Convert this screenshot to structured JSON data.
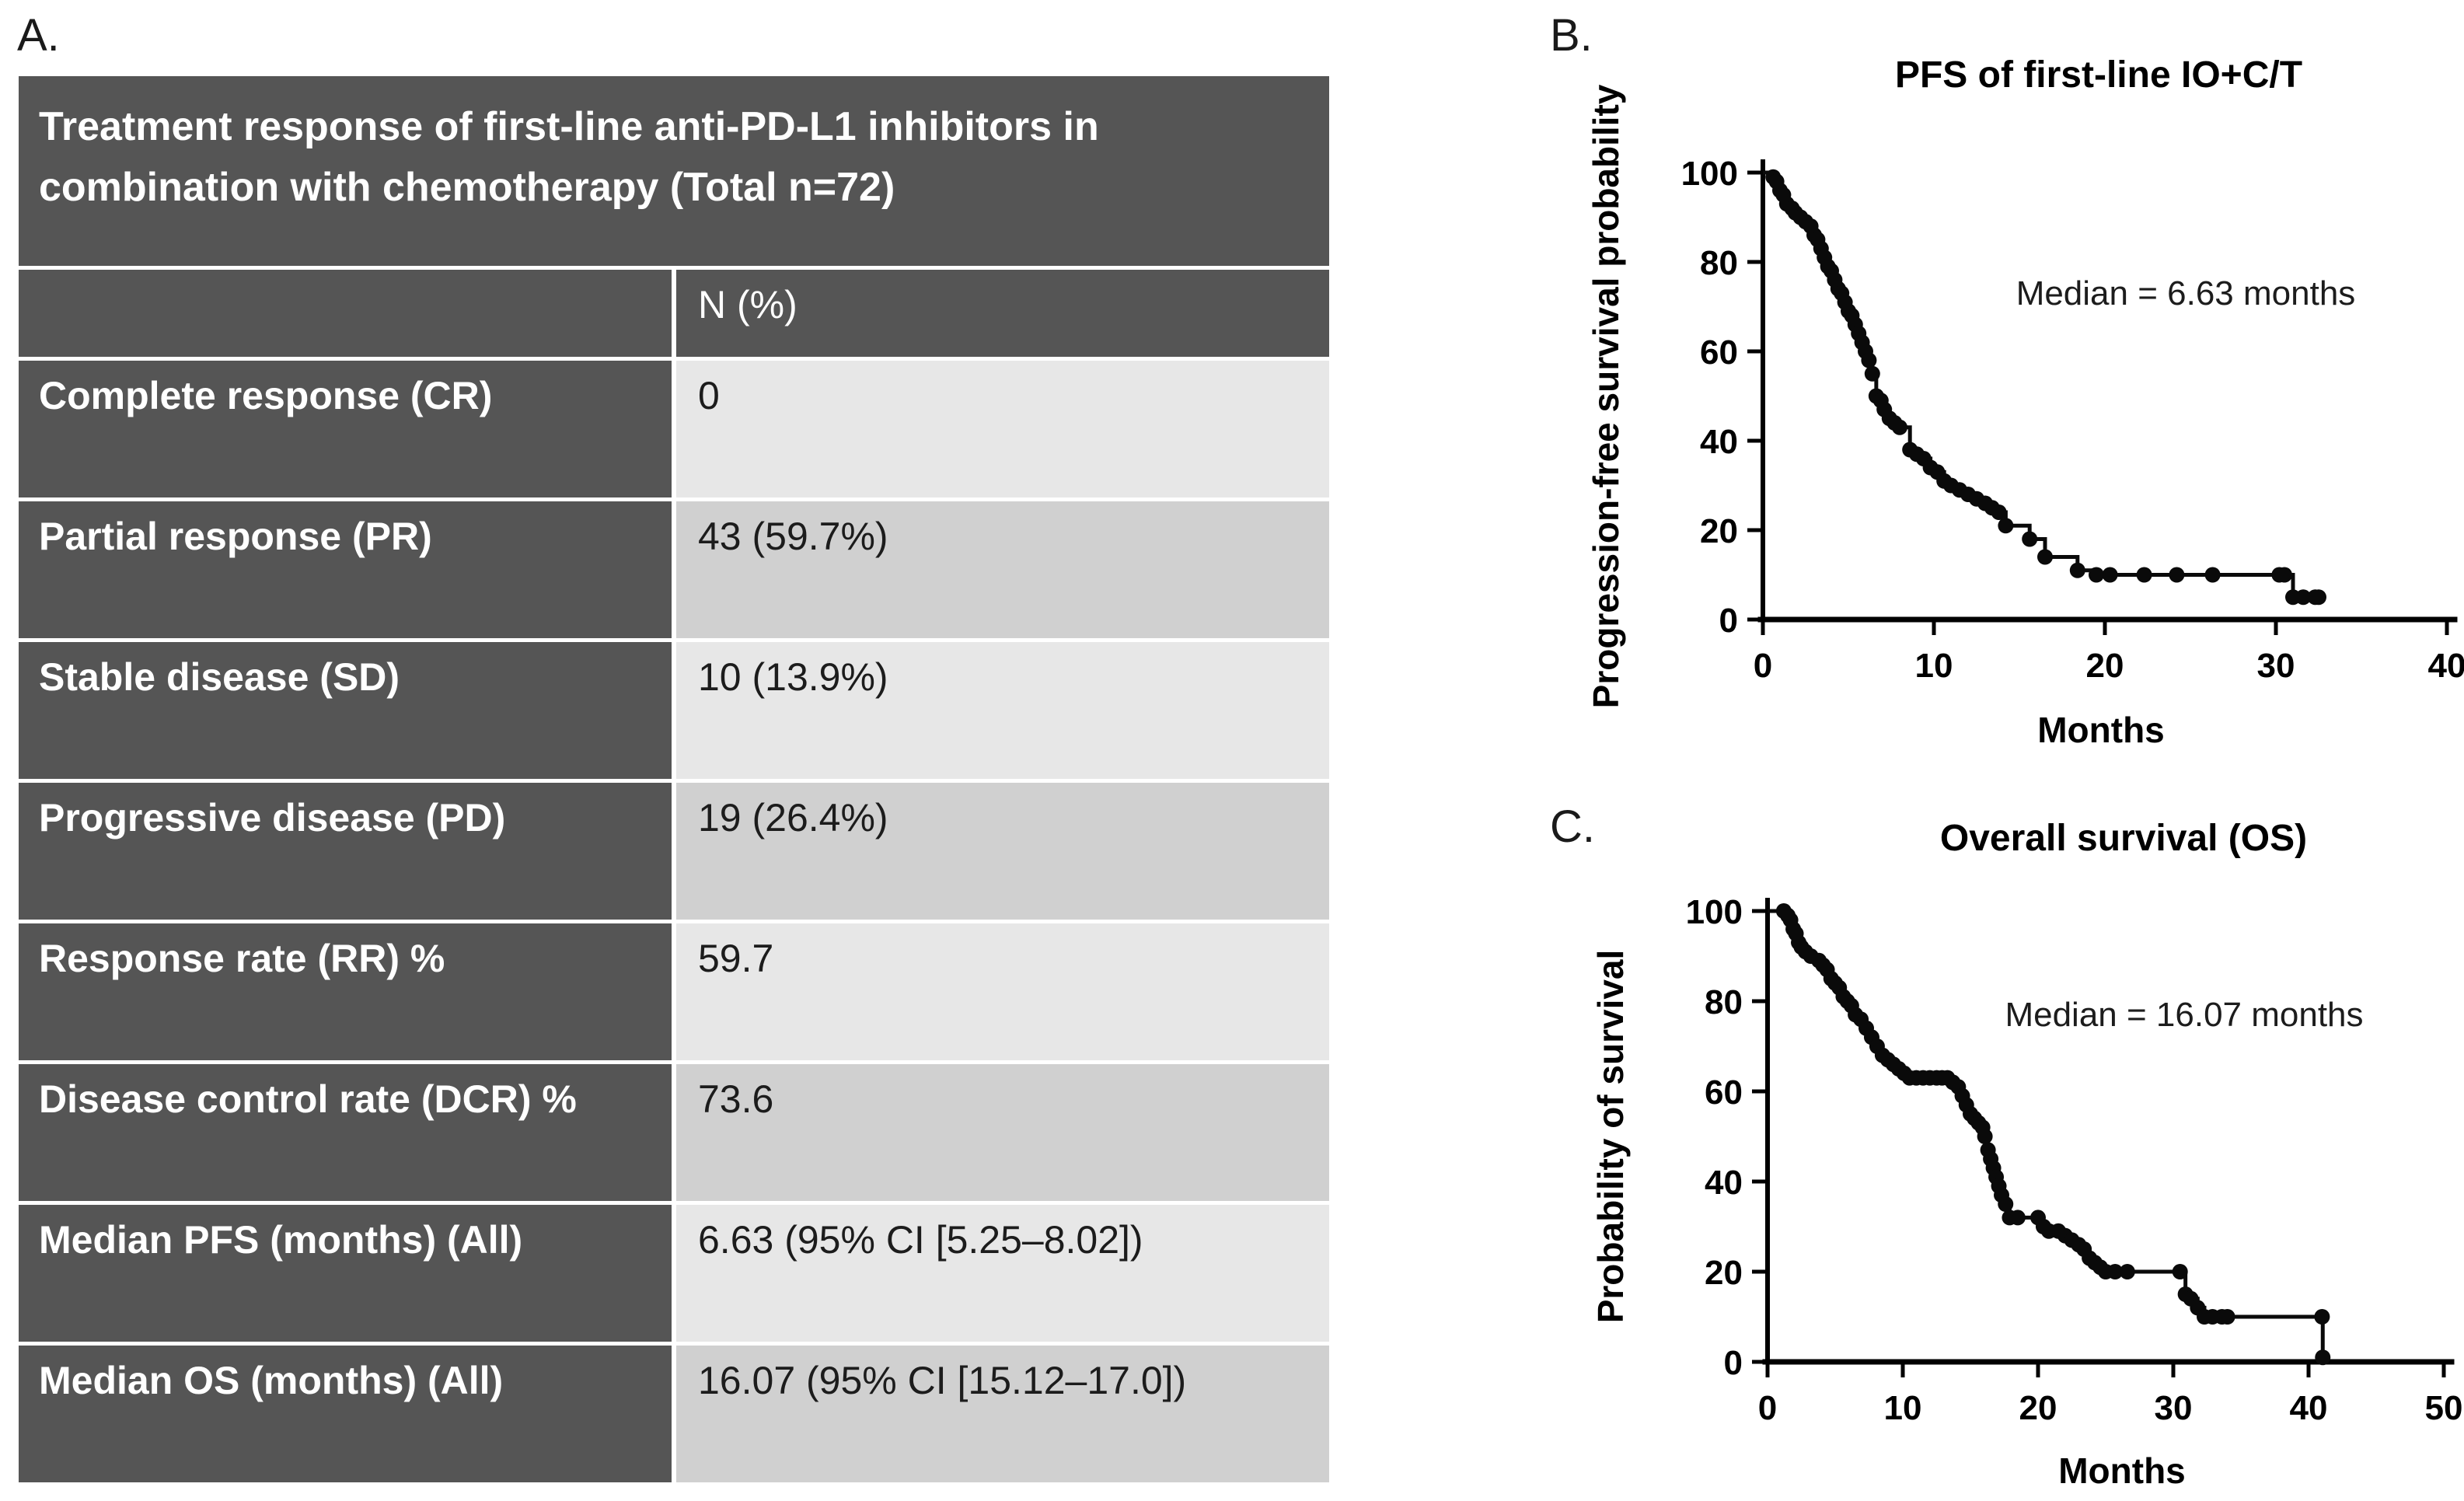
{
  "panel_a": {
    "label": "A.",
    "table": {
      "title": "Treatment response of first-line anti-PD-L1 inhibitors in combination with chemotherapy (Total n=72)",
      "column_header": "N (%)",
      "rows": [
        {
          "label": "Complete response (CR)",
          "value": "0"
        },
        {
          "label": "Partial response (PR)",
          "value": "43 (59.7%)"
        },
        {
          "label": "Stable disease (SD)",
          "value": "10 (13.9%)"
        },
        {
          "label": "Progressive disease (PD)",
          "value": "19 (26.4%)"
        },
        {
          "label": "Response rate (RR) %",
          "value": "59.7"
        },
        {
          "label": "Disease control rate (DCR) %",
          "value": "73.6"
        },
        {
          "label": "Median PFS (months) (All)",
          "value": "6.63 (95% CI [5.25–8.02])"
        },
        {
          "label": "Median OS (months) (All)",
          "value": "16.07 (95% CI [15.12–17.0])"
        }
      ],
      "colors": {
        "header_bg": "#555555",
        "row_light": "#e7e7e7",
        "row_medium": "#d0d0d0",
        "header_text": "#ffffff",
        "value_text": "#1c1c1c"
      }
    }
  },
  "panel_b": {
    "label": "B."
  },
  "panel_c": {
    "label": "C."
  },
  "chart_data": [
    {
      "id": "pfs",
      "type": "line",
      "subtype": "kaplan-meier-step",
      "title": "PFS of first-line IO+C/T",
      "xlabel": "Months",
      "ylabel": "Progression-free survival probability",
      "annotation": "Median = 6.63 months",
      "median_months": 6.63,
      "xlim": [
        0,
        40
      ],
      "ylim": [
        0,
        100
      ],
      "xticks": [
        0,
        10,
        20,
        30,
        40
      ],
      "yticks": [
        0,
        20,
        40,
        60,
        80,
        100
      ],
      "grid": false,
      "line_color": "#0a0a0a",
      "steps": [
        [
          0,
          100
        ],
        [
          0.6,
          99
        ],
        [
          0.8,
          98
        ],
        [
          1.0,
          96
        ],
        [
          1.2,
          95
        ],
        [
          1.4,
          93
        ],
        [
          1.7,
          92
        ],
        [
          1.9,
          91
        ],
        [
          2.2,
          90
        ],
        [
          2.5,
          89
        ],
        [
          2.8,
          88
        ],
        [
          3.0,
          86
        ],
        [
          3.2,
          85
        ],
        [
          3.4,
          83
        ],
        [
          3.6,
          81
        ],
        [
          3.8,
          79
        ],
        [
          4.0,
          78
        ],
        [
          4.2,
          76
        ],
        [
          4.4,
          74
        ],
        [
          4.6,
          73
        ],
        [
          4.8,
          71
        ],
        [
          5.0,
          69
        ],
        [
          5.2,
          68
        ],
        [
          5.4,
          66
        ],
        [
          5.6,
          64
        ],
        [
          5.8,
          62
        ],
        [
          6.0,
          60
        ],
        [
          6.2,
          58
        ],
        [
          6.4,
          55
        ],
        [
          6.63,
          50
        ],
        [
          6.9,
          49
        ],
        [
          7.1,
          47
        ],
        [
          7.4,
          45
        ],
        [
          7.7,
          44
        ],
        [
          8.0,
          43
        ],
        [
          8.6,
          38
        ],
        [
          9.0,
          37
        ],
        [
          9.4,
          36
        ],
        [
          9.8,
          34
        ],
        [
          10.2,
          33
        ],
        [
          10.6,
          31
        ],
        [
          11.0,
          30
        ],
        [
          11.5,
          29
        ],
        [
          12.0,
          28
        ],
        [
          12.5,
          27
        ],
        [
          13.0,
          26
        ],
        [
          13.4,
          25
        ],
        [
          13.8,
          24
        ],
        [
          14.2,
          21
        ],
        [
          15.6,
          18
        ],
        [
          16.5,
          14
        ],
        [
          18.4,
          11
        ],
        [
          19.5,
          10
        ],
        [
          30.5,
          10
        ],
        [
          31.0,
          5
        ],
        [
          32.5,
          5
        ]
      ],
      "censor_marks": [
        [
          20.3,
          10
        ],
        [
          22.3,
          10
        ],
        [
          24.2,
          10
        ],
        [
          26.3,
          10
        ],
        [
          30.2,
          10
        ],
        [
          31.6,
          5
        ],
        [
          32.3,
          5
        ]
      ]
    },
    {
      "id": "os",
      "type": "line",
      "subtype": "kaplan-meier-step",
      "title": "Overall survival (OS)",
      "xlabel": "Months",
      "ylabel": "Probability of survival",
      "annotation": "Median = 16.07 months",
      "median_months": 16.07,
      "xlim": [
        0,
        50
      ],
      "ylim": [
        0,
        100
      ],
      "xticks": [
        0,
        10,
        20,
        30,
        40,
        50
      ],
      "yticks": [
        0,
        20,
        40,
        60,
        80,
        100
      ],
      "grid": false,
      "line_color": "#0a0a0a",
      "steps": [
        [
          0,
          100
        ],
        [
          1.2,
          100
        ],
        [
          1.5,
          99
        ],
        [
          1.7,
          98
        ],
        [
          1.9,
          96
        ],
        [
          2.1,
          95
        ],
        [
          2.3,
          93
        ],
        [
          2.5,
          92
        ],
        [
          2.8,
          91
        ],
        [
          3.2,
          90
        ],
        [
          3.8,
          89
        ],
        [
          4.1,
          88
        ],
        [
          4.4,
          87
        ],
        [
          4.7,
          85
        ],
        [
          5.0,
          84
        ],
        [
          5.3,
          83
        ],
        [
          5.6,
          81
        ],
        [
          5.9,
          80
        ],
        [
          6.2,
          79
        ],
        [
          6.5,
          77
        ],
        [
          6.9,
          76
        ],
        [
          7.3,
          74
        ],
        [
          7.7,
          72
        ],
        [
          8.1,
          70
        ],
        [
          8.5,
          68
        ],
        [
          8.9,
          67
        ],
        [
          9.3,
          66
        ],
        [
          9.7,
          65
        ],
        [
          10.1,
          64
        ],
        [
          10.5,
          63
        ],
        [
          13.3,
          63
        ],
        [
          13.7,
          62
        ],
        [
          14.1,
          61
        ],
        [
          14.4,
          59
        ],
        [
          14.7,
          57
        ],
        [
          15.0,
          55
        ],
        [
          15.3,
          54
        ],
        [
          15.6,
          53
        ],
        [
          15.9,
          52
        ],
        [
          16.07,
          50
        ],
        [
          16.3,
          47
        ],
        [
          16.5,
          45
        ],
        [
          16.7,
          43
        ],
        [
          16.9,
          41
        ],
        [
          17.1,
          39
        ],
        [
          17.3,
          37
        ],
        [
          17.6,
          35
        ],
        [
          17.9,
          32
        ],
        [
          20.0,
          32
        ],
        [
          20.4,
          30
        ],
        [
          20.8,
          29
        ],
        [
          21.5,
          29
        ],
        [
          22.0,
          28
        ],
        [
          22.5,
          27
        ],
        [
          23.0,
          26
        ],
        [
          23.4,
          25
        ],
        [
          23.8,
          23
        ],
        [
          24.2,
          22
        ],
        [
          24.6,
          21
        ],
        [
          25.0,
          20
        ],
        [
          30.5,
          20
        ],
        [
          30.9,
          15
        ],
        [
          31.3,
          14
        ],
        [
          31.8,
          12
        ],
        [
          32.3,
          10
        ],
        [
          34.0,
          10
        ],
        [
          41.0,
          10
        ],
        [
          41.05,
          1
        ]
      ],
      "censor_marks": [
        [
          11.0,
          63
        ],
        [
          11.5,
          63
        ],
        [
          12.0,
          63
        ],
        [
          12.5,
          63
        ],
        [
          12.9,
          63
        ],
        [
          18.5,
          32
        ],
        [
          25.7,
          20
        ],
        [
          26.6,
          20
        ],
        [
          32.9,
          10
        ],
        [
          33.6,
          10
        ]
      ]
    }
  ]
}
